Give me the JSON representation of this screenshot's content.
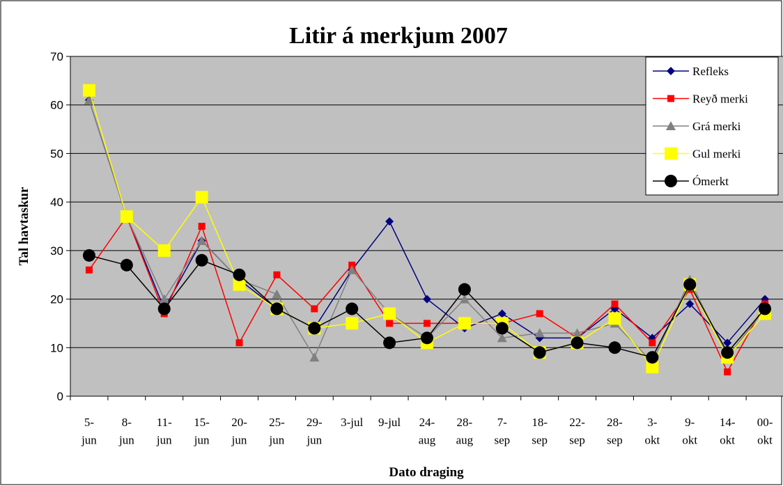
{
  "chart_data": {
    "type": "line",
    "title": "Litir á merkjum 2007",
    "x_label": "Dato draging",
    "y_label": "Tal havtaskur",
    "categories": [
      "5-\njun",
      "8-\njun",
      "11-\njun",
      "15-\njun",
      "20-\njun",
      "25-\njun",
      "29-\njun",
      "3-jul",
      "9-jul",
      "24-\naug",
      "28-\naug",
      "7-\nsep",
      "18-\nsep",
      "22-\nsep",
      "28-\nsep",
      "3-\nokt",
      "9-\nokt",
      "14-\nokt",
      "00-\nokt"
    ],
    "ylim": [
      0,
      70
    ],
    "yticks": [
      0,
      10,
      20,
      30,
      40,
      50,
      60,
      70
    ],
    "grid": true,
    "legend": "top-right",
    "background": "#c0c0c0",
    "series": [
      {
        "name": "Refleks",
        "color": "#000080",
        "marker": "diamond",
        "values": [
          61,
          37,
          18,
          32,
          24,
          18,
          14,
          26,
          36,
          20,
          14,
          17,
          12,
          12,
          18,
          12,
          19,
          11,
          20
        ]
      },
      {
        "name": "Reyð merki",
        "color": "#ff0000",
        "marker": "square",
        "values": [
          26,
          37,
          17,
          35,
          11,
          25,
          18,
          27,
          15,
          15,
          15,
          15,
          17,
          12,
          19,
          11,
          22,
          5,
          19
        ]
      },
      {
        "name": "Grá merki",
        "color": "#808080",
        "marker": "triangle",
        "values": [
          61,
          37,
          20,
          32,
          24,
          21,
          8,
          26,
          17,
          12,
          20,
          12,
          13,
          13,
          15,
          7,
          24,
          8,
          18
        ]
      },
      {
        "name": "Gul merki",
        "color": "#ffff00",
        "marker": "bigsquare",
        "values": [
          63,
          37,
          30,
          41,
          23,
          18,
          14,
          15,
          17,
          11,
          15,
          15,
          9,
          11,
          16,
          6,
          23,
          8,
          17
        ]
      },
      {
        "name": "Ómerkt",
        "color": "#000000",
        "marker": "circle",
        "values": [
          29,
          27,
          18,
          28,
          25,
          18,
          14,
          18,
          11,
          12,
          22,
          14,
          9,
          11,
          10,
          8,
          23,
          9,
          18
        ]
      }
    ]
  }
}
